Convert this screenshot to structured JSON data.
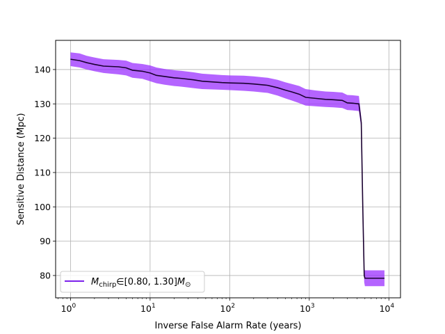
{
  "chart_data": {
    "type": "line",
    "xlabel": "Inverse False Alarm Rate (years)",
    "ylabel": "Sensitive Distance (Mpc)",
    "xscale": "log",
    "xlim": [
      0.65,
      14000
    ],
    "ylim": [
      73.5,
      148.5
    ],
    "xticks": [
      {
        "value": 1,
        "base": "10",
        "exp": "0"
      },
      {
        "value": 10,
        "base": "10",
        "exp": "1"
      },
      {
        "value": 100,
        "base": "10",
        "exp": "2"
      },
      {
        "value": 1000,
        "base": "10",
        "exp": "3"
      },
      {
        "value": 10000,
        "base": "10",
        "exp": "4"
      }
    ],
    "yticks": [
      80,
      90,
      100,
      110,
      120,
      130,
      140
    ],
    "grid": true,
    "legend": {
      "placement": "lower-left",
      "label_symbol": "M",
      "label_subscript": "chirp",
      "label_mid": "∈[0.80, 1.30]",
      "label_symbol2": "M",
      "label_sub2": "⊙"
    },
    "colors": {
      "line": "#1a0030",
      "band": "#9b30ff",
      "legend_line": "#6a00e8"
    },
    "series": [
      {
        "name": "M_chirp ∈ [0.80, 1.30] M_⊙",
        "x": [
          1.0,
          1.3,
          1.6,
          2.0,
          2.6,
          3.2,
          4.0,
          5.0,
          6.0,
          8.0,
          10.0,
          12.0,
          15.0,
          20.0,
          25.0,
          35.0,
          45.0,
          60.0,
          80.0,
          100.0,
          150.0,
          200.0,
          300.0,
          400.0,
          500.0,
          600.0,
          750.0,
          900.0,
          1200.0,
          1600.0,
          2000.0,
          2600.0,
          3000.0,
          3500.0,
          4200.0,
          4500.0,
          4700.0,
          4900.0,
          5000.0,
          5500.0,
          7000.0,
          8800.0
        ],
        "y": [
          143.0,
          142.6,
          142.0,
          141.5,
          141.0,
          140.9,
          140.8,
          140.5,
          139.8,
          139.5,
          139.0,
          138.3,
          138.0,
          137.6,
          137.4,
          137.0,
          136.6,
          136.4,
          136.2,
          136.1,
          136.0,
          135.8,
          135.4,
          134.7,
          134.0,
          133.5,
          132.8,
          131.9,
          131.6,
          131.3,
          131.2,
          131.0,
          130.3,
          130.2,
          130.0,
          124.5,
          100.0,
          80.0,
          79.2,
          79.2,
          79.2,
          79.2
        ],
        "lower": [
          141.0,
          140.6,
          140.0,
          139.5,
          139.0,
          138.8,
          138.6,
          138.3,
          137.6,
          137.3,
          136.6,
          136.0,
          135.6,
          135.2,
          135.0,
          134.6,
          134.3,
          134.2,
          134.1,
          134.0,
          133.8,
          133.6,
          133.2,
          132.4,
          131.6,
          131.0,
          130.2,
          129.5,
          129.3,
          129.1,
          129.0,
          128.8,
          128.2,
          128.1,
          127.9,
          123.0,
          98.0,
          78.0,
          76.9,
          76.9,
          76.9,
          76.9
        ],
        "upper": [
          145.0,
          144.7,
          144.0,
          143.5,
          143.0,
          142.9,
          142.8,
          142.6,
          141.9,
          141.6,
          141.2,
          140.6,
          140.2,
          139.8,
          139.6,
          139.2,
          138.8,
          138.6,
          138.4,
          138.3,
          138.2,
          138.0,
          137.6,
          137.0,
          136.3,
          135.8,
          135.2,
          134.3,
          133.9,
          133.6,
          133.5,
          133.3,
          132.6,
          132.5,
          132.3,
          126.0,
          102.0,
          82.0,
          81.5,
          81.5,
          81.5,
          81.5
        ]
      }
    ]
  }
}
